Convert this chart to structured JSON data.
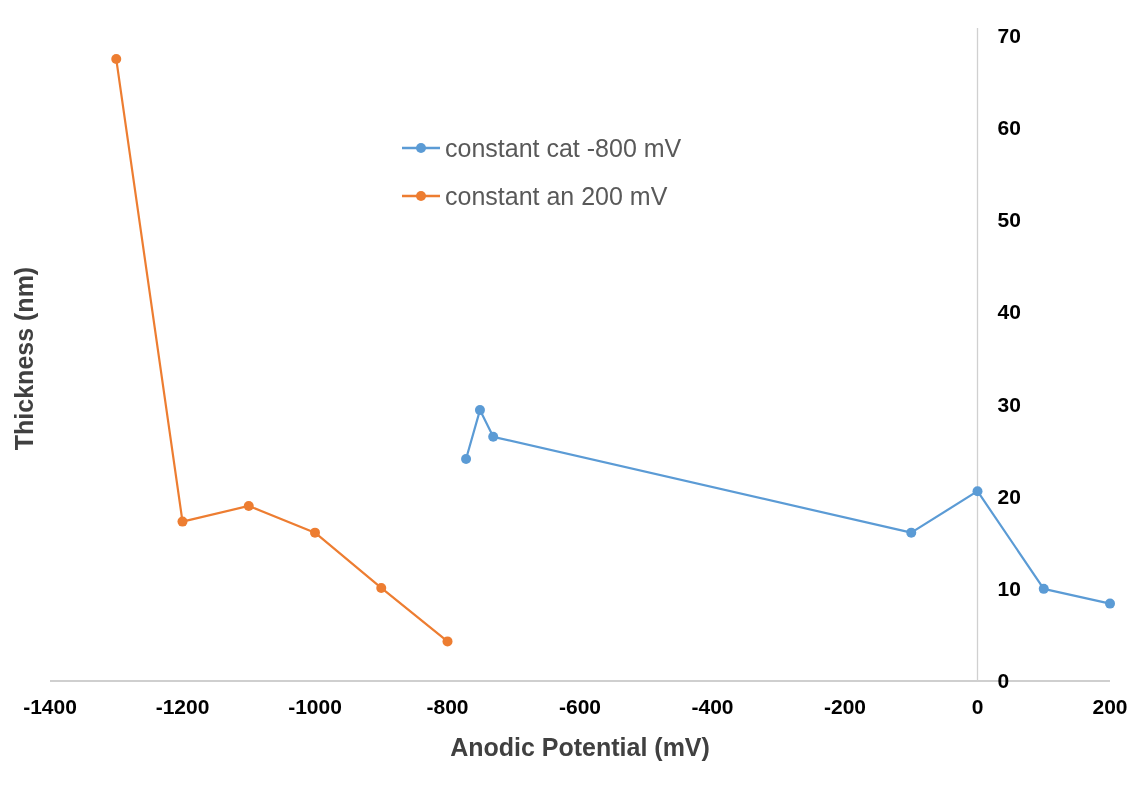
{
  "chart_data": {
    "type": "line",
    "xlabel": "Anodic Potential (mV)",
    "ylabel": "Thickness (nm)",
    "xlim": [
      -1400,
      200
    ],
    "xticks": [
      -1400,
      -1200,
      -1000,
      -800,
      -600,
      -400,
      -200,
      0,
      200
    ],
    "ylim": [
      0,
      70
    ],
    "yticks": [
      0,
      10,
      20,
      30,
      40,
      50,
      60,
      70
    ],
    "grid": false,
    "legend": "top",
    "marker": "circle",
    "line_style": "solid",
    "series": [
      {
        "name": "constant cat -800 mV",
        "color": "#5b9bd5",
        "x": [
          -772,
          -751,
          -731,
          -100,
          0,
          100,
          200
        ],
        "values": [
          24.1,
          29.4,
          26.5,
          16.1,
          20.6,
          10.0,
          8.4
        ]
      },
      {
        "name": "constant an 200 mV",
        "color": "#ed7d31",
        "x": [
          -1300,
          -1200,
          -1100,
          -1000,
          -900,
          -800
        ],
        "values": [
          67.5,
          17.3,
          19.0,
          16.1,
          10.1,
          4.3
        ]
      }
    ]
  }
}
